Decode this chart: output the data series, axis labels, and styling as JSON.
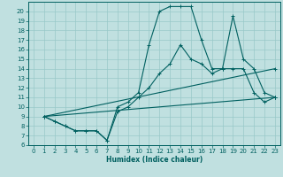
{
  "xlabel": "Humidex (Indice chaleur)",
  "bg_color": "#c0e0e0",
  "line_color": "#006060",
  "grid_color": "#98c8c8",
  "xlim": [
    -0.5,
    23.5
  ],
  "ylim": [
    6,
    21
  ],
  "yticks": [
    6,
    7,
    8,
    9,
    10,
    11,
    12,
    13,
    14,
    15,
    16,
    17,
    18,
    19,
    20
  ],
  "xticks": [
    0,
    1,
    2,
    3,
    4,
    5,
    6,
    7,
    8,
    9,
    10,
    11,
    12,
    13,
    14,
    15,
    16,
    17,
    18,
    19,
    20,
    21,
    22,
    23
  ],
  "line1_x": [
    1,
    2,
    3,
    4,
    5,
    6,
    7,
    8,
    9,
    10,
    11,
    12,
    13,
    14,
    15,
    16,
    17,
    18,
    19,
    20,
    21,
    22,
    23
  ],
  "line1_y": [
    9,
    8.5,
    8,
    7.5,
    7.5,
    7.5,
    6.5,
    10,
    10.5,
    11.5,
    16.5,
    20,
    20.5,
    20.5,
    20.5,
    17,
    14,
    14,
    19.5,
    15,
    14,
    11.5,
    11
  ],
  "line2_x": [
    1,
    2,
    3,
    4,
    5,
    6,
    7,
    8,
    9,
    10,
    11,
    12,
    13,
    14,
    15,
    16,
    17,
    18,
    19,
    20,
    21,
    22,
    23
  ],
  "line2_y": [
    9,
    8.5,
    8,
    7.5,
    7.5,
    7.5,
    6.5,
    9.5,
    10,
    11,
    12,
    13.5,
    14.5,
    16.5,
    15,
    14.5,
    13.5,
    14,
    14,
    14,
    11.5,
    10.5,
    11
  ],
  "line3_x": [
    1,
    23
  ],
  "line3_y": [
    9,
    11
  ],
  "line4_x": [
    1,
    23
  ],
  "line4_y": [
    9,
    14
  ]
}
